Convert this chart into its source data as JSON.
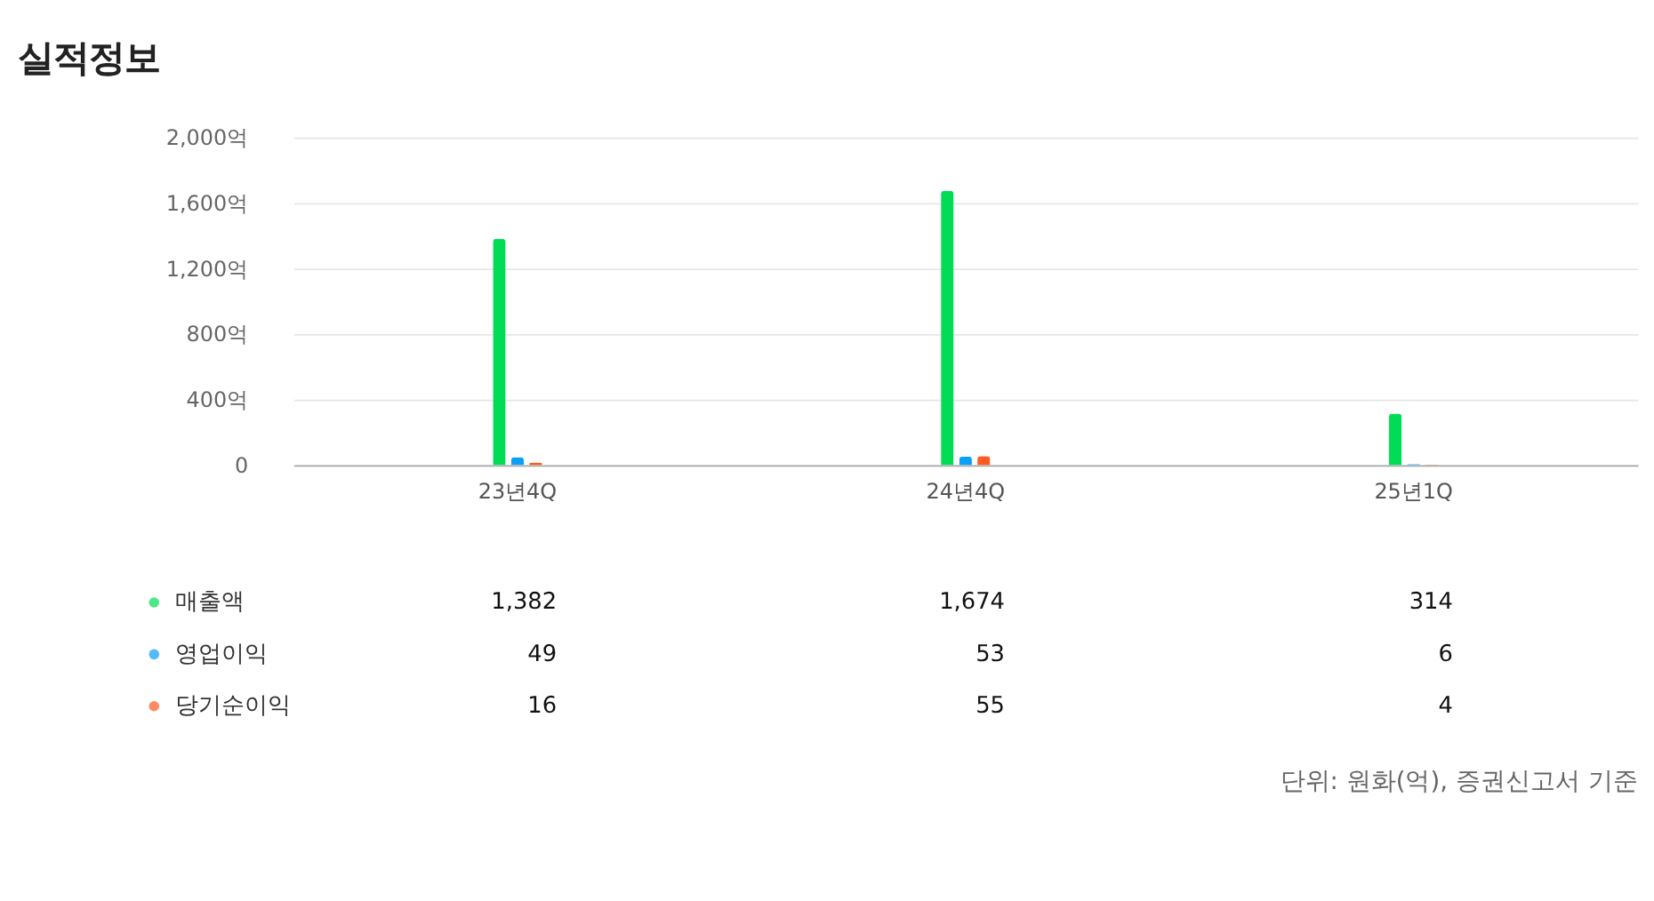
{
  "chart_data": {
    "type": "bar",
    "title": "실적정보",
    "categories": [
      "23년4Q",
      "24년4Q",
      "25년1Q"
    ],
    "series": [
      {
        "name": "매출액",
        "color": "#00dd55",
        "values": [
          1382,
          1674,
          314
        ],
        "value_labels": [
          "1,382",
          "1,674",
          "314"
        ]
      },
      {
        "name": "영업이익",
        "color": "#0aa0f5",
        "values": [
          49,
          53,
          6
        ],
        "value_labels": [
          "49",
          "53",
          "6"
        ]
      },
      {
        "name": "당기순이익",
        "color": "#ff5a1f",
        "values": [
          16,
          55,
          4
        ],
        "value_labels": [
          "16",
          "55",
          "4"
        ]
      }
    ],
    "ylim": [
      0,
      2000
    ],
    "yticks": [
      {
        "value": 0,
        "label": "0"
      },
      {
        "value": 400,
        "label": "400억"
      },
      {
        "value": 800,
        "label": "800억"
      },
      {
        "value": 1200,
        "label": "1,200억"
      },
      {
        "value": 1600,
        "label": "1,600억"
      },
      {
        "value": 2000,
        "label": "2,000억"
      }
    ],
    "grid": "y",
    "legend": "bottom",
    "annotations": [
      "단위: 원화(억), 증권신고서 기준"
    ]
  }
}
